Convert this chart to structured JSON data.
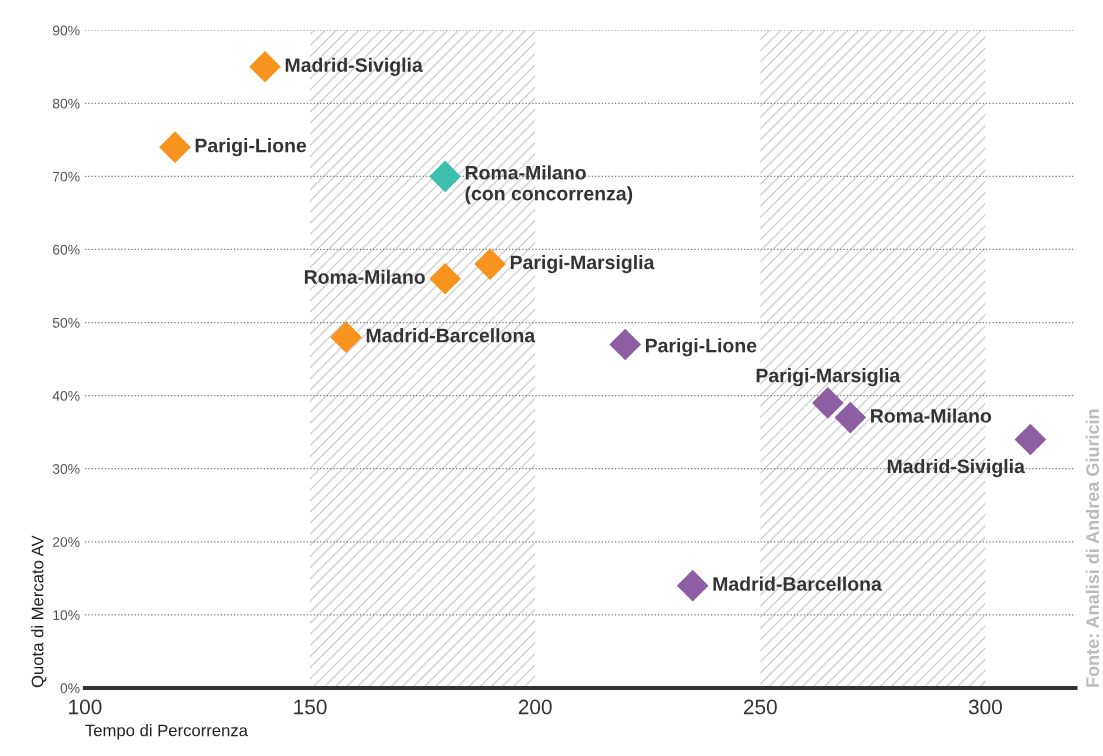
{
  "chart_data": {
    "type": "scatter",
    "xlabel": "Tempo di Percorrenza",
    "ylabel": "Quota di Mercato AV",
    "xlim": [
      100,
      320
    ],
    "xticks": [
      100,
      150,
      200,
      250,
      300
    ],
    "ylim": [
      0,
      90
    ],
    "yticks": [
      {
        "value": 0,
        "label": "0%"
      },
      {
        "value": 10,
        "label": "10%"
      },
      {
        "value": 20,
        "label": "20%"
      },
      {
        "value": 30,
        "label": "30%"
      },
      {
        "value": 40,
        "label": "40%"
      },
      {
        "value": 50,
        "label": "50%"
      },
      {
        "value": 60,
        "label": "60%"
      },
      {
        "value": 70,
        "label": "70%"
      },
      {
        "value": 80,
        "label": "80%"
      },
      {
        "value": 90,
        "label": "90%"
      }
    ],
    "grid": "y",
    "marker": "diamond",
    "series": [
      {
        "color": "#f7941d",
        "x": [
          140,
          120,
          180,
          190,
          158
        ],
        "values": [
          85,
          74,
          56,
          58,
          48
        ]
      },
      {
        "color": "#3dbfad",
        "x": [
          180
        ],
        "values": [
          70
        ]
      },
      {
        "color": "#8e5ea2",
        "x": [
          220,
          265,
          270,
          310,
          235
        ],
        "values": [
          47,
          39,
          37,
          34,
          14
        ]
      }
    ],
    "bands": [
      {
        "axis": "x",
        "from": 150,
        "to": 200,
        "color": "#d0d0d0"
      },
      {
        "axis": "x",
        "from": 250,
        "to": 300,
        "color": "#d0d0d0"
      }
    ],
    "annotations": [
      {
        "text": "Madrid-Siviglia",
        "x": 140,
        "y": 85
      },
      {
        "text": "Parigi-Lione",
        "x": 120,
        "y": 74
      },
      {
        "text": "Roma-Milano\n(con concorrenza)",
        "x": 180,
        "y": 70
      },
      {
        "text": "Roma-Milano",
        "x": 180,
        "y": 56
      },
      {
        "text": "Parigi-Marsiglia",
        "x": 190,
        "y": 58
      },
      {
        "text": "Madrid-Barcellona",
        "x": 158,
        "y": 48
      },
      {
        "text": "Parigi-Lione",
        "x": 220,
        "y": 47
      },
      {
        "text": "Parigi-Marsiglia",
        "x": 265,
        "y": 39
      },
      {
        "text": "Roma-Milano",
        "x": 270,
        "y": 37
      },
      {
        "text": "Madrid-Siviglia",
        "x": 310,
        "y": 34
      },
      {
        "text": "Madrid-Barcellona",
        "x": 235,
        "y": 14
      },
      "Fonte: Analisi di Andrea Giuricin"
    ]
  }
}
